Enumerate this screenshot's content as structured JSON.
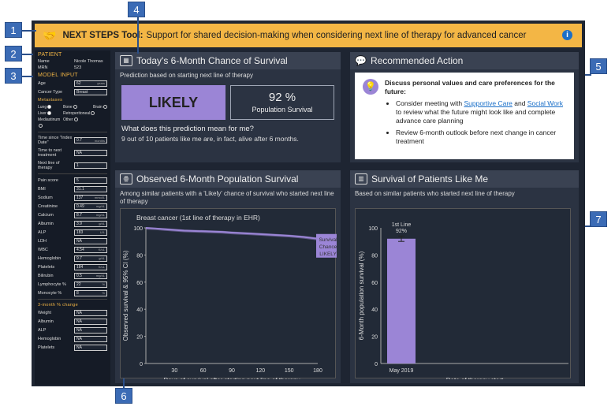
{
  "header": {
    "title": "NEXT STEPS Tool:",
    "subtitle": "Support for shared decision-making when considering next line of therapy for advanced cancer",
    "info_glyph": "i"
  },
  "patient": {
    "heading": "PATIENT",
    "name_label": "Name",
    "name": "Nicole Thomas",
    "mrn_label": "MRN",
    "mrn": "523"
  },
  "model_input": {
    "heading": "MODEL INPUT",
    "age_label": "Age",
    "age": "62",
    "age_unit": "years",
    "cancer_label": "Cancer Type",
    "cancer": "Breast",
    "metastases_heading": "Metastases",
    "lung": "Lung",
    "bone": "Bone",
    "brain": "Brain",
    "liver": "Liver",
    "retro": "Retroperitoneal",
    "medi": "Mediastinum",
    "other": "Other",
    "time_label": "Time since \"Index Date\"",
    "time": "0.7",
    "time_unit": "months",
    "ttnt_label": "Time to next treatment",
    "ttnt": "NA",
    "line_label": "Next line of therapy",
    "line": "1"
  },
  "labs": [
    {
      "label": "Pain score",
      "value": "5",
      "unit": ""
    },
    {
      "label": "BMI",
      "value": "31.1",
      "unit": ""
    },
    {
      "label": "Sodium",
      "value": "137",
      "unit": "mmol/L"
    },
    {
      "label": "Creatinine",
      "value": "0.49",
      "unit": "mg/dL"
    },
    {
      "label": "Calcium",
      "value": "8.7",
      "unit": "mg/dL"
    },
    {
      "label": "Albumin",
      "value": "3.9",
      "unit": "g/dL"
    },
    {
      "label": "ALP",
      "value": "183",
      "unit": "U/L"
    },
    {
      "label": "LDH",
      "value": "NA",
      "unit": ""
    },
    {
      "label": "WBC",
      "value": "4.54",
      "unit": "K/uL"
    },
    {
      "label": "Hemoglobin",
      "value": "9.7",
      "unit": "g/dL"
    },
    {
      "label": "Platelets",
      "value": "184",
      "unit": "K/uL"
    },
    {
      "label": "Bilirubin",
      "value": "0.5",
      "unit": "mg/dL"
    },
    {
      "label": "Lymphocyte %",
      "value": "22",
      "unit": "%"
    },
    {
      "label": "Monocyte %",
      "value": "8",
      "unit": "%"
    }
  ],
  "change": {
    "heading": "3-month % change",
    "items": [
      {
        "label": "Weight",
        "value": "NA"
      },
      {
        "label": "Albumin",
        "value": "NA"
      },
      {
        "label": "ALP",
        "value": "NA"
      },
      {
        "label": "Hemoglobin",
        "value": "NA"
      },
      {
        "label": "Platelets",
        "value": "NA"
      }
    ]
  },
  "chance": {
    "title": "Today's 6-Month Chance of Survival",
    "subtitle": "Prediction based on starting next line of therapy",
    "label": "LIKELY",
    "pct": "92 %",
    "pct_label": "Population Survival",
    "question": "What does this prediction mean for me?",
    "answer": "9 out of 10 patients like me are, in fact, alive after 6 months."
  },
  "action": {
    "title": "Recommended Action",
    "heading": "Discuss personal values and care preferences for the future:",
    "b1_pre": "Consider meeting with ",
    "b1_link1": "Supportive Care",
    "b1_mid": " and ",
    "b1_link2": "Social Work",
    "b1_post": " to review what the future might look like and complete advance care planning",
    "b2": "Review 6-month outlook before next change in cancer treatment"
  },
  "observed": {
    "title": "Observed 6-Month Population Survival",
    "subtitle": "Among similar patients with a 'Likely' chance of survival who started next line of therapy"
  },
  "likeme": {
    "title": "Survival of Patients Like Me",
    "subtitle": "Based on similar patients who started next line of therapy"
  },
  "callouts": [
    "1",
    "2",
    "3",
    "4",
    "5",
    "6",
    "7"
  ],
  "chart_data": [
    {
      "type": "line",
      "title": "Breast cancer (1st line of therapy in EHR)",
      "xlabel": "Days of survival after starting next line of therapy",
      "ylabel": "Observed survival & 95% CI (%)",
      "xlim": [
        0,
        180
      ],
      "ylim": [
        0,
        100
      ],
      "xticks": [
        30,
        60,
        90,
        120,
        150,
        180
      ],
      "yticks": [
        0,
        20,
        40,
        60,
        80,
        100
      ],
      "x": [
        0,
        10,
        20,
        30,
        40,
        60,
        80,
        90,
        110,
        130,
        150,
        165,
        180
      ],
      "y": [
        100,
        99.6,
        99,
        98.5,
        98,
        97.5,
        97,
        96.5,
        95.8,
        95,
        94.2,
        93.3,
        92
      ],
      "annotation": [
        "Survival",
        "Chance",
        "LIKELY"
      ],
      "color": "#9b85d6"
    },
    {
      "type": "bar",
      "xlabel": "Date of therapy start",
      "ylabel": "6-Month population survival (%)",
      "ylim": [
        0,
        100
      ],
      "yticks": [
        0,
        20,
        40,
        60,
        80,
        100
      ],
      "categories": [
        "May 2019"
      ],
      "values": [
        92
      ],
      "label_top": [
        "1st Line",
        "92%"
      ],
      "error": [
        2
      ],
      "color": "#9b85d6"
    }
  ]
}
